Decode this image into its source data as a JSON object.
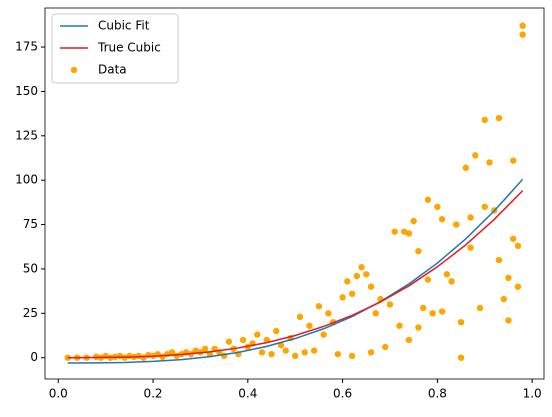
{
  "chart_data": {
    "type": "scatter-lines",
    "xlim": [
      -0.028,
      1.025
    ],
    "ylim": [
      -12,
      197
    ],
    "xticks": [
      {
        "value": 0,
        "label": "0.0"
      },
      {
        "value": 0.2,
        "label": "0.2"
      },
      {
        "value": 0.4,
        "label": "0.4"
      },
      {
        "value": 0.6,
        "label": "0.6"
      },
      {
        "value": 0.8,
        "label": "0.8"
      },
      {
        "value": 1,
        "label": "1.0"
      }
    ],
    "yticks": [
      0,
      25,
      50,
      75,
      100,
      125,
      150,
      175
    ],
    "legend": "upper left",
    "lines": [
      {
        "name": "Cubic Fit",
        "color": "#1f77b4",
        "x": [
          0.02,
          0.08,
          0.14,
          0.2,
          0.26,
          0.32,
          0.38,
          0.44,
          0.5,
          0.56,
          0.62,
          0.68,
          0.74,
          0.8,
          0.86,
          0.92,
          0.98
        ],
        "values": [
          -3.0,
          -2.9,
          -2.7,
          -2.1,
          -1.1,
          0.6,
          3.0,
          6.4,
          10.8,
          16.3,
          23.2,
          31.6,
          41.6,
          53.3,
          67.0,
          82.7,
          100.5
        ]
      },
      {
        "name": "True Cubic",
        "color": "#e41a1c",
        "x": [
          0.02,
          0.08,
          0.14,
          0.2,
          0.26,
          0.32,
          0.38,
          0.44,
          0.5,
          0.56,
          0.62,
          0.68,
          0.74,
          0.8,
          0.86,
          0.92,
          0.98
        ],
        "values": [
          0.0,
          0.1,
          0.3,
          0.8,
          1.8,
          3.3,
          5.5,
          8.5,
          12.5,
          17.6,
          23.8,
          31.4,
          40.5,
          51.2,
          63.6,
          77.9,
          94.1
        ]
      }
    ],
    "scatter": {
      "name": "Data",
      "color": "#ffa500",
      "x": [
        0.02,
        0.04,
        0.06,
        0.08,
        0.09,
        0.1,
        0.11,
        0.12,
        0.13,
        0.14,
        0.15,
        0.16,
        0.17,
        0.18,
        0.19,
        0.2,
        0.21,
        0.22,
        0.23,
        0.24,
        0.25,
        0.26,
        0.27,
        0.28,
        0.29,
        0.3,
        0.31,
        0.32,
        0.33,
        0.34,
        0.35,
        0.36,
        0.37,
        0.38,
        0.39,
        0.4,
        0.41,
        0.42,
        0.43,
        0.44,
        0.45,
        0.46,
        0.47,
        0.48,
        0.49,
        0.5,
        0.51,
        0.52,
        0.53,
        0.54,
        0.55,
        0.56,
        0.57,
        0.58,
        0.59,
        0.6,
        0.61,
        0.62,
        0.62,
        0.63,
        0.64,
        0.65,
        0.66,
        0.66,
        0.67,
        0.68,
        0.69,
        0.7,
        0.71,
        0.72,
        0.73,
        0.74,
        0.74,
        0.75,
        0.76,
        0.76,
        0.77,
        0.78,
        0.78,
        0.79,
        0.8,
        0.81,
        0.81,
        0.82,
        0.83,
        0.84,
        0.85,
        0.85,
        0.86,
        0.87,
        0.87,
        0.88,
        0.89,
        0.9,
        0.9,
        0.91,
        0.92,
        0.93,
        0.93,
        0.94,
        0.95,
        0.95,
        0.96,
        0.96,
        0.97,
        0.97,
        0.98,
        0.98
      ],
      "values": [
        0,
        0,
        0,
        0.5,
        0,
        1,
        0,
        0.5,
        1,
        0,
        1,
        0.5,
        1,
        0,
        1.5,
        1,
        2,
        0.5,
        2,
        3,
        1,
        2,
        3,
        2,
        4,
        3,
        5,
        2,
        5,
        3,
        1,
        9,
        5,
        2,
        10,
        6,
        8,
        13,
        3,
        10,
        2,
        15,
        7,
        4,
        11,
        1,
        23,
        3,
        18,
        4,
        29,
        13,
        25,
        20,
        2,
        34,
        43,
        1,
        36,
        46,
        51,
        47,
        3,
        40,
        25,
        33,
        6,
        30,
        71,
        18,
        71,
        10,
        70,
        77,
        17,
        60,
        28,
        89,
        44,
        25,
        85,
        78,
        26,
        47,
        43,
        75,
        20,
        0,
        107,
        62,
        79,
        114,
        28,
        85,
        134,
        110,
        83,
        135,
        55,
        33,
        21,
        45,
        67,
        111,
        63,
        40,
        182,
        187
      ]
    }
  }
}
